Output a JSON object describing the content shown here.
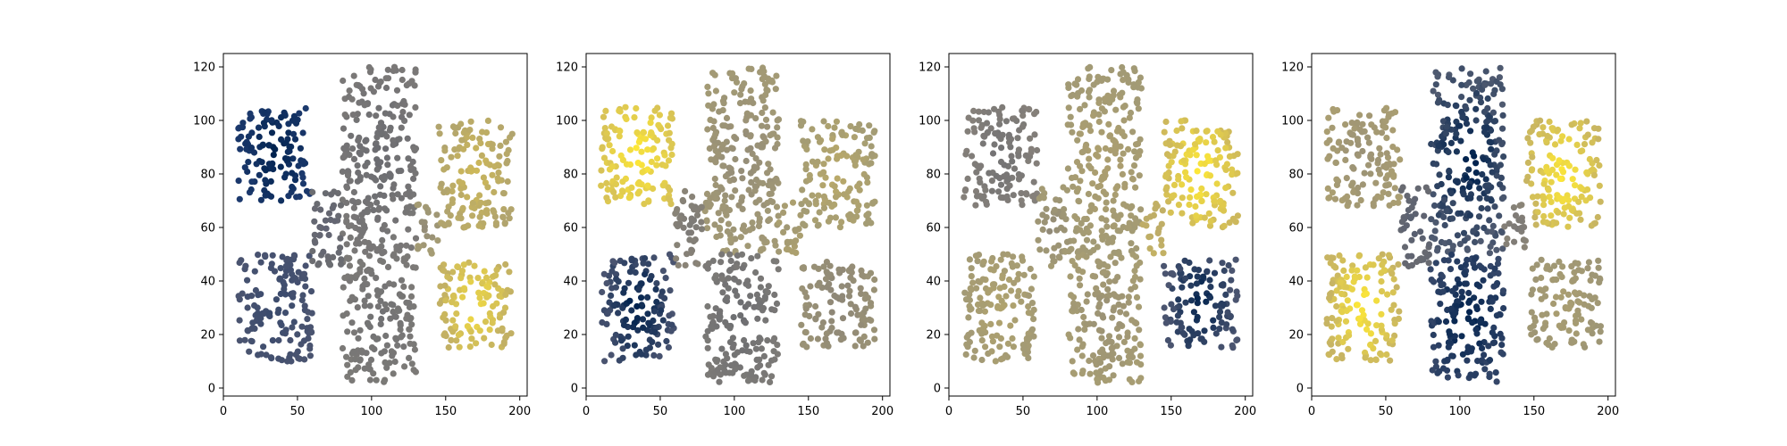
{
  "chart_data": [
    {
      "type": "scatter",
      "panel": 1,
      "description_of_coloring": "clusters colored by cividis colormap; left-top block darkest, right blocks lightest",
      "xlim": [
        0,
        205
      ],
      "ylim": [
        -3,
        125
      ],
      "xticks": [
        0,
        50,
        100,
        150,
        200
      ],
      "yticks": [
        0,
        20,
        40,
        60,
        80,
        100,
        120
      ],
      "grid": false,
      "series": [
        {
          "region": "top-left",
          "x_range": [
            10,
            60
          ],
          "y_range": [
            70,
            105
          ],
          "color_center": "#00224e",
          "color_edge": "#1d3a6e"
        },
        {
          "region": "bottom-left",
          "x_range": [
            10,
            60
          ],
          "y_range": [
            10,
            50
          ],
          "color_center": "#3a4a6d",
          "color_edge": "#4a5470"
        },
        {
          "region": "center-top",
          "x_range": [
            80,
            130
          ],
          "y_range": [
            50,
            120
          ],
          "color_center": "#6b6c71",
          "color_edge": "#7a7877"
        },
        {
          "region": "center-bottom",
          "x_range": [
            80,
            130
          ],
          "y_range": [
            2,
            50
          ],
          "color_center": "#727274",
          "color_edge": "#7c7a77"
        },
        {
          "region": "bridge",
          "x_range": [
            60,
            80
          ],
          "y_range": [
            45,
            75
          ],
          "color_center": "#5f6273",
          "color_edge": "#6c6d71"
        },
        {
          "region": "right-bridge",
          "x_range": [
            130,
            145
          ],
          "y_range": [
            50,
            70
          ],
          "color_center": "#918a78",
          "color_edge": "#a59c74"
        },
        {
          "region": "top-right",
          "x_range": [
            145,
            195
          ],
          "y_range": [
            60,
            100
          ],
          "color_center": "#cdb859",
          "color_edge": "#b1a46e"
        },
        {
          "region": "bottom-right",
          "x_range": [
            145,
            195
          ],
          "y_range": [
            15,
            48
          ],
          "color_center": "#f0d943",
          "color_edge": "#c2b064"
        }
      ]
    },
    {
      "type": "scatter",
      "panel": 2,
      "xlim": [
        0,
        205
      ],
      "ylim": [
        -3,
        125
      ],
      "xticks": [
        0,
        50,
        100,
        150,
        200
      ],
      "yticks": [
        0,
        20,
        40,
        60,
        80,
        100,
        120
      ],
      "grid": false,
      "series": [
        {
          "region": "top-left",
          "x_range": [
            10,
            60
          ],
          "y_range": [
            68,
            105
          ],
          "color_center": "#fde737",
          "color_edge": "#d7c257"
        },
        {
          "region": "bottom-left",
          "x_range": [
            10,
            60
          ],
          "y_range": [
            10,
            50
          ],
          "color_center": "#00224e",
          "color_edge": "#4a5470"
        },
        {
          "region": "center-top",
          "x_range": [
            80,
            130
          ],
          "y_range": [
            50,
            120
          ],
          "color_center": "#958d78",
          "color_edge": "#a39a75"
        },
        {
          "region": "center-bottom",
          "x_range": [
            80,
            130
          ],
          "y_range": [
            2,
            50
          ],
          "color_center": "#6c6d71",
          "color_edge": "#7c7a77"
        },
        {
          "region": "bridge",
          "x_range": [
            60,
            80
          ],
          "y_range": [
            45,
            75
          ],
          "color_center": "#7b7977",
          "color_edge": "#8a8477"
        },
        {
          "region": "right-bridge",
          "x_range": [
            130,
            145
          ],
          "y_range": [
            50,
            70
          ],
          "color_center": "#9f9775",
          "color_edge": "#aca06f"
        },
        {
          "region": "top-right",
          "x_range": [
            145,
            195
          ],
          "y_range": [
            60,
            100
          ],
          "color_center": "#b9a96a",
          "color_edge": "#a49c74"
        },
        {
          "region": "bottom-right",
          "x_range": [
            145,
            195
          ],
          "y_range": [
            15,
            48
          ],
          "color_center": "#8d8677",
          "color_edge": "#9a9276"
        }
      ]
    },
    {
      "type": "scatter",
      "panel": 3,
      "xlim": [
        0,
        205
      ],
      "ylim": [
        -3,
        125
      ],
      "xticks": [
        0,
        50,
        100,
        150,
        200
      ],
      "yticks": [
        0,
        20,
        40,
        60,
        80,
        100,
        120
      ],
      "grid": false,
      "series": [
        {
          "region": "top-left",
          "x_range": [
            10,
            60
          ],
          "y_range": [
            68,
            105
          ],
          "color_center": "#737374",
          "color_edge": "#85807a"
        },
        {
          "region": "bottom-left",
          "x_range": [
            10,
            60
          ],
          "y_range": [
            10,
            50
          ],
          "color_center": "#b0a36e",
          "color_edge": "#a39a75"
        },
        {
          "region": "center-top",
          "x_range": [
            80,
            130
          ],
          "y_range": [
            50,
            120
          ],
          "color_center": "#ad9f6f",
          "color_edge": "#a29a75"
        },
        {
          "region": "center-bottom",
          "x_range": [
            80,
            130
          ],
          "y_range": [
            2,
            50
          ],
          "color_center": "#9b9275",
          "color_edge": "#a79d73"
        },
        {
          "region": "bridge",
          "x_range": [
            60,
            80
          ],
          "y_range": [
            45,
            75
          ],
          "color_center": "#918a77",
          "color_edge": "#a49b74"
        },
        {
          "region": "right-bridge",
          "x_range": [
            130,
            145
          ],
          "y_range": [
            50,
            70
          ],
          "color_center": "#baa96a",
          "color_edge": "#c3b164"
        },
        {
          "region": "top-right",
          "x_range": [
            145,
            195
          ],
          "y_range": [
            60,
            100
          ],
          "color_center": "#fde737",
          "color_edge": "#cdb85c"
        },
        {
          "region": "bottom-right",
          "x_range": [
            145,
            195
          ],
          "y_range": [
            15,
            48
          ],
          "color_center": "#00224e",
          "color_edge": "#4b5570"
        }
      ]
    },
    {
      "type": "scatter",
      "panel": 4,
      "xlim": [
        0,
        205
      ],
      "ylim": [
        -3,
        125
      ],
      "xticks": [
        0,
        50,
        100,
        150,
        200
      ],
      "yticks": [
        0,
        20,
        40,
        60,
        80,
        100,
        120
      ],
      "grid": false,
      "series": [
        {
          "region": "top-left",
          "x_range": [
            10,
            60
          ],
          "y_range": [
            68,
            105
          ],
          "color_center": "#9b9276",
          "color_edge": "#aa9e72"
        },
        {
          "region": "bottom-left",
          "x_range": [
            10,
            60
          ],
          "y_range": [
            10,
            50
          ],
          "color_center": "#fde737",
          "color_edge": "#c7b463"
        },
        {
          "region": "center-top",
          "x_range": [
            80,
            130
          ],
          "y_range": [
            50,
            120
          ],
          "color_center": "#00224e",
          "color_edge": "#4f5a70"
        },
        {
          "region": "center-bottom",
          "x_range": [
            80,
            130
          ],
          "y_range": [
            2,
            50
          ],
          "color_center": "#00224e",
          "color_edge": "#354769"
        },
        {
          "region": "bridge",
          "x_range": [
            60,
            80
          ],
          "y_range": [
            45,
            75
          ],
          "color_center": "#545c70",
          "color_edge": "#686a71"
        },
        {
          "region": "right-bridge",
          "x_range": [
            130,
            145
          ],
          "y_range": [
            50,
            70
          ],
          "color_center": "#7a7877",
          "color_edge": "#8b8577"
        },
        {
          "region": "top-right",
          "x_range": [
            145,
            195
          ],
          "y_range": [
            60,
            100
          ],
          "color_center": "#fde737",
          "color_edge": "#c8b562"
        },
        {
          "region": "bottom-right",
          "x_range": [
            145,
            195
          ],
          "y_range": [
            15,
            48
          ],
          "color_center": "#aa9e71",
          "color_edge": "#9e9675"
        }
      ]
    }
  ]
}
